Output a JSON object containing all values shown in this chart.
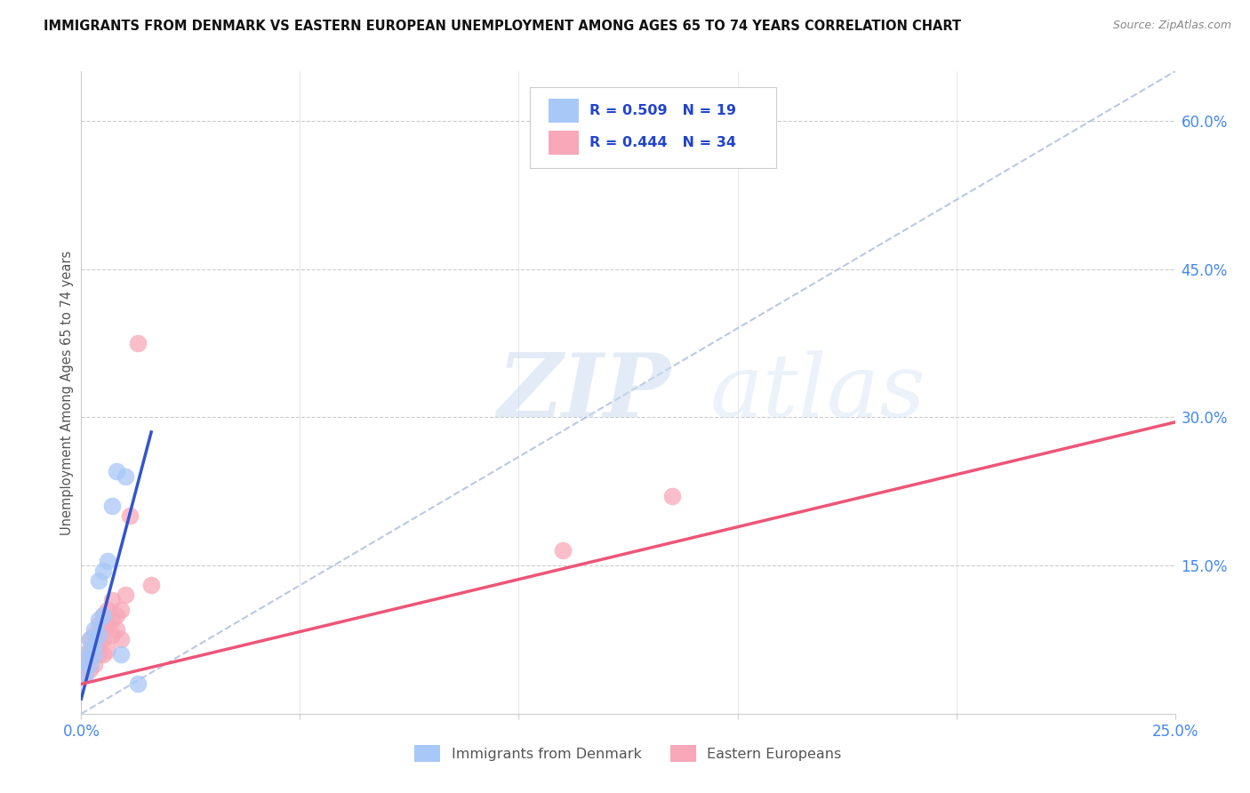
{
  "title": "IMMIGRANTS FROM DENMARK VS EASTERN EUROPEAN UNEMPLOYMENT AMONG AGES 65 TO 74 YEARS CORRELATION CHART",
  "source": "Source: ZipAtlas.com",
  "ylabel": "Unemployment Among Ages 65 to 74 years",
  "xlim": [
    0.0,
    0.25
  ],
  "ylim": [
    0.0,
    0.65
  ],
  "x_ticks": [
    0.0,
    0.05,
    0.1,
    0.15,
    0.2,
    0.25
  ],
  "x_tick_labels": [
    "0.0%",
    "",
    "",
    "",
    "",
    "25.0%"
  ],
  "y_ticks_right": [
    0.0,
    0.15,
    0.3,
    0.45,
    0.6
  ],
  "y_tick_labels_right": [
    "",
    "15.0%",
    "30.0%",
    "45.0%",
    "60.0%"
  ],
  "watermark_zip": "ZIP",
  "watermark_atlas": "atlas",
  "denmark_color": "#a8c8f8",
  "eastern_color": "#f8a8b8",
  "denmark_line_color": "#3355cc",
  "eastern_line_color": "#ee5577",
  "dashed_line_color": "#aabbdd",
  "denmark_scatter_x": [
    0.001,
    0.001,
    0.002,
    0.002,
    0.002,
    0.003,
    0.003,
    0.003,
    0.004,
    0.004,
    0.004,
    0.005,
    0.005,
    0.006,
    0.007,
    0.008,
    0.009,
    0.01,
    0.013
  ],
  "denmark_scatter_y": [
    0.04,
    0.055,
    0.05,
    0.065,
    0.075,
    0.06,
    0.07,
    0.085,
    0.08,
    0.095,
    0.135,
    0.145,
    0.1,
    0.155,
    0.21,
    0.245,
    0.06,
    0.24,
    0.03
  ],
  "eastern_scatter_x": [
    0.001,
    0.001,
    0.001,
    0.002,
    0.002,
    0.002,
    0.002,
    0.003,
    0.003,
    0.003,
    0.003,
    0.004,
    0.004,
    0.004,
    0.005,
    0.005,
    0.005,
    0.005,
    0.006,
    0.006,
    0.006,
    0.007,
    0.007,
    0.007,
    0.008,
    0.008,
    0.009,
    0.009,
    0.01,
    0.011,
    0.013,
    0.016,
    0.11,
    0.135
  ],
  "eastern_scatter_y": [
    0.04,
    0.05,
    0.055,
    0.045,
    0.06,
    0.065,
    0.075,
    0.05,
    0.06,
    0.07,
    0.08,
    0.06,
    0.07,
    0.09,
    0.06,
    0.075,
    0.085,
    0.1,
    0.065,
    0.09,
    0.105,
    0.08,
    0.095,
    0.115,
    0.085,
    0.1,
    0.075,
    0.105,
    0.12,
    0.2,
    0.375,
    0.13,
    0.165,
    0.22
  ],
  "denmark_trendline_x": [
    0.0,
    0.016
  ],
  "denmark_trendline_y": [
    0.015,
    0.285
  ],
  "eastern_trendline_x": [
    0.0,
    0.25
  ],
  "eastern_trendline_y": [
    0.03,
    0.295
  ],
  "dashed_trendline_x": [
    0.0,
    0.25
  ],
  "dashed_trendline_y": [
    0.0,
    0.65
  ]
}
